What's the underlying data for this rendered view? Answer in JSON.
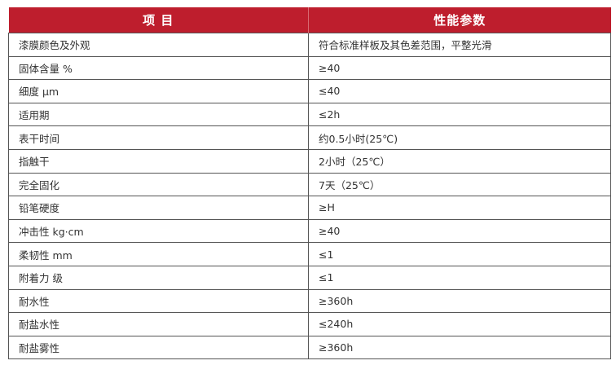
{
  "header": {
    "item": "项 目",
    "spec": "性能参数"
  },
  "colors": {
    "header_bg": "#be1e2d"
  },
  "rows": [
    {
      "item": "漆膜颜色及外观",
      "value": "符合标准样板及其色差范围，平整光滑"
    },
    {
      "item": "固体含量  %",
      "value": "≥40"
    },
    {
      "item": "细度  μm",
      "value": "≤40"
    },
    {
      "item": "适用期",
      "value": "≤2h"
    },
    {
      "item": "表干时间",
      "value": "约0.5小时(25℃)"
    },
    {
      "item": "指触干",
      "value": "2小时（25℃）"
    },
    {
      "item": "完全固化",
      "value": "7天（25℃）"
    },
    {
      "item": "铅笔硬度",
      "value": "≥H"
    },
    {
      "item": "冲击性  kg·cm",
      "value": "≥40"
    },
    {
      "item": "柔韧性  mm",
      "value": "≤1"
    },
    {
      "item": "附着力  级",
      "value": "≤1"
    },
    {
      "item": "耐水性",
      "value": "≥360h"
    },
    {
      "item": "耐盐水性",
      "value": "≤240h"
    },
    {
      "item": "耐盐雾性",
      "value": "≥360h"
    }
  ]
}
